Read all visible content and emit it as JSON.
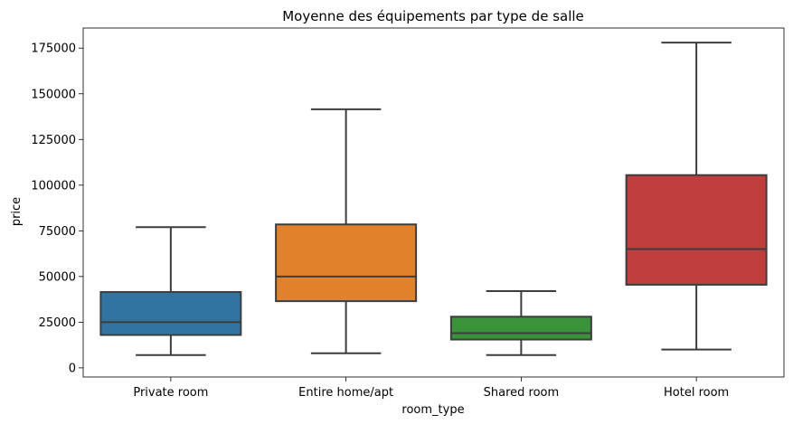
{
  "chart_data": {
    "type": "box",
    "title": "Moyenne des équipements par type de salle",
    "xlabel": "room_type",
    "ylabel": "price",
    "ylim": [
      -5000,
      186000
    ],
    "yticks": [
      0,
      25000,
      50000,
      75000,
      100000,
      125000,
      150000,
      175000
    ],
    "ytick_labels": [
      "0",
      "25000",
      "50000",
      "75000",
      "100000",
      "125000",
      "150000",
      "175000"
    ],
    "grid": false,
    "categories": [
      "Private room",
      "Entire home/apt",
      "Shared room",
      "Hotel room"
    ],
    "boxes": [
      {
        "category": "Private room",
        "whisker_low": 7000,
        "q1": 18000,
        "median": 25000,
        "q3": 41500,
        "whisker_high": 77000,
        "color": "#3274a1"
      },
      {
        "category": "Entire home/apt",
        "whisker_low": 8000,
        "q1": 36500,
        "median": 50000,
        "q3": 78500,
        "whisker_high": 141500,
        "color": "#e1812c"
      },
      {
        "category": "Shared room",
        "whisker_low": 7000,
        "q1": 15500,
        "median": 19000,
        "q3": 28000,
        "whisker_high": 42000,
        "color": "#3a923a"
      },
      {
        "category": "Hotel room",
        "whisker_low": 10000,
        "q1": 45500,
        "median": 65000,
        "q3": 105500,
        "whisker_high": 178000,
        "color": "#c03d3e"
      }
    ]
  }
}
